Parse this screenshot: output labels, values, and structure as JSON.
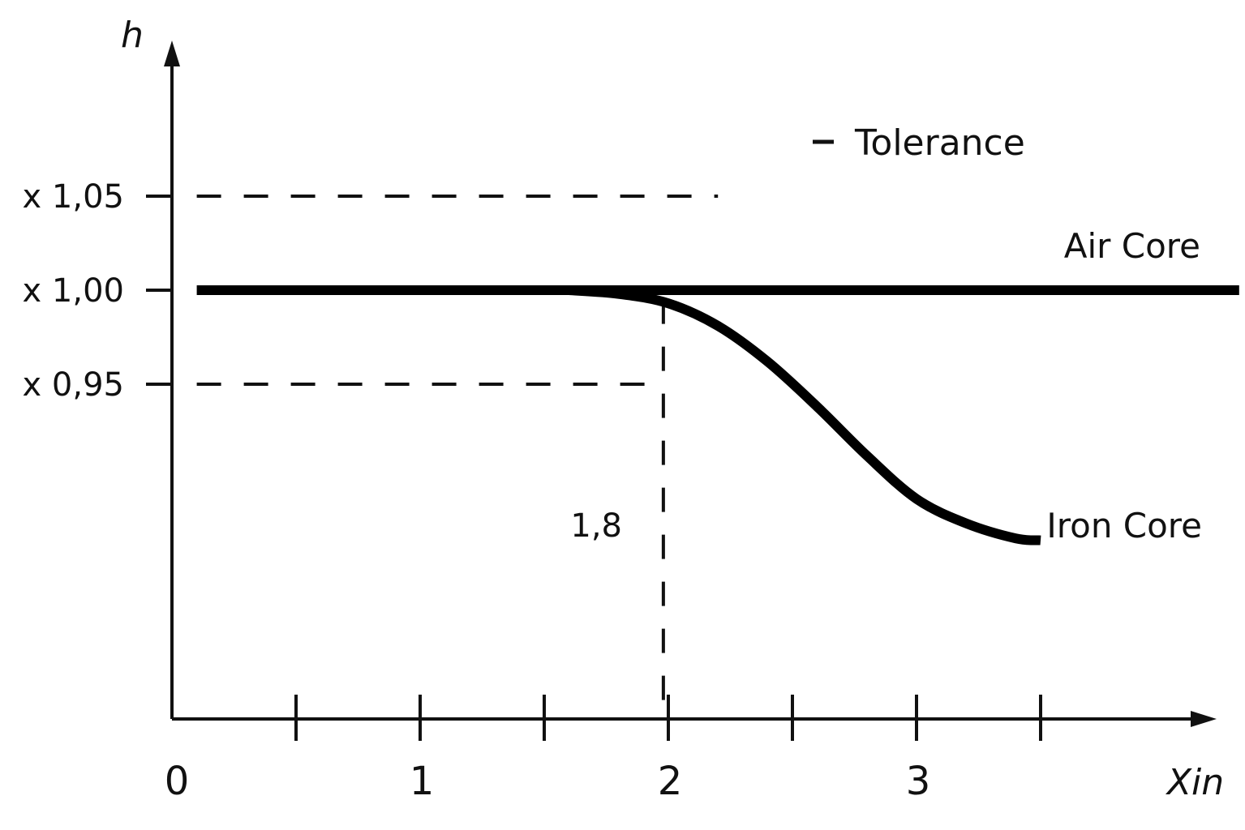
{
  "chart_data": {
    "type": "line",
    "title": "",
    "xlabel": "Xin",
    "ylabel": "h",
    "xlim": [
      0,
      4.3
    ],
    "ylim": [
      0.85,
      1.18
    ],
    "grid": false,
    "legend_position": "top-right",
    "legend": [
      {
        "symbol": "dash",
        "label": "Tolerance"
      }
    ],
    "x_ticks": [
      {
        "value": 0,
        "label": "0"
      },
      {
        "value": 0.5,
        "label": ""
      },
      {
        "value": 1,
        "label": "1"
      },
      {
        "value": 1.5,
        "label": ""
      },
      {
        "value": 2,
        "label": "2"
      },
      {
        "value": 2.5,
        "label": ""
      },
      {
        "value": 3,
        "label": "3"
      },
      {
        "value": 3.5,
        "label": ""
      }
    ],
    "y_ticks": [
      {
        "value": 1.05,
        "label": "x 1,05"
      },
      {
        "value": 1.0,
        "label": "x 1,00"
      },
      {
        "value": 0.95,
        "label": "x 0,95"
      }
    ],
    "series": [
      {
        "name": "Air Core",
        "style": "solid",
        "color": "#000000",
        "x": [
          0.1,
          4.3
        ],
        "y": [
          1.0,
          1.0
        ]
      },
      {
        "name": "Iron Core",
        "style": "solid",
        "color": "#000000",
        "x": [
          1.6,
          1.8,
          2.0,
          2.2,
          2.4,
          2.6,
          2.8,
          3.0,
          3.2,
          3.4,
          3.5
        ],
        "y": [
          1.0,
          0.998,
          0.993,
          0.981,
          0.962,
          0.938,
          0.912,
          0.889,
          0.876,
          0.868,
          0.867
        ]
      }
    ],
    "reference_lines": [
      {
        "orientation": "horizontal",
        "style": "dashed",
        "y": 1.05,
        "x_from": 0.1,
        "x_to": 2.2
      },
      {
        "orientation": "horizontal",
        "style": "dashed",
        "y": 0.95,
        "x_from": 0.1,
        "x_to": 1.98
      },
      {
        "orientation": "vertical",
        "style": "dashed",
        "x": 1.98,
        "y_from": 0.995,
        "y_to": 0.85
      }
    ],
    "annotations": [
      {
        "text": "1,8",
        "x": 1.98,
        "y": 0.89
      }
    ]
  }
}
